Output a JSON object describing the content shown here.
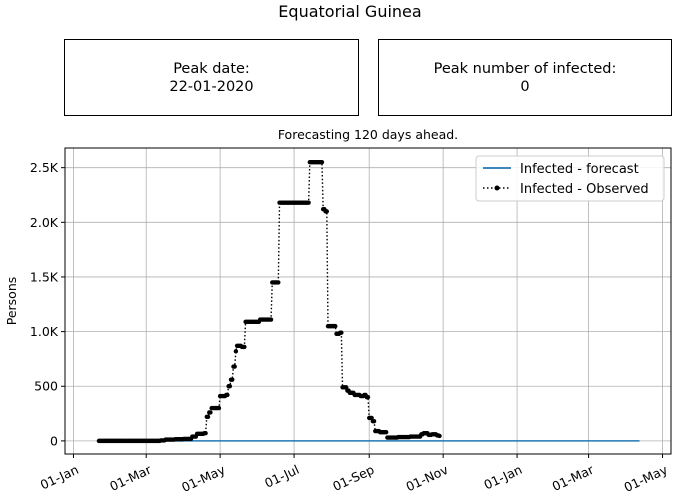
{
  "title": "Equatorial Guinea",
  "peak_date": {
    "label": "Peak date:",
    "value": "22-01-2020"
  },
  "peak_infected": {
    "label": "Peak number of infected:",
    "value": "0"
  },
  "chart_data": {
    "type": "line",
    "subtitle": "Forecasting 120 days ahead.",
    "ylabel": "Persons",
    "xlabel": "",
    "x_ticks": [
      "01-Jan",
      "01-Mar",
      "01-May",
      "01-Jul",
      "01-Sep",
      "01-Nov",
      "01-Jan",
      "01-Mar",
      "01-May"
    ],
    "y_ticks": [
      "0",
      "500",
      "1.0K",
      "1.5K",
      "2.0K",
      "2.5K"
    ],
    "ylim": [
      -120,
      2680
    ],
    "grid": true,
    "legend_position": "top-right",
    "series": [
      {
        "name": "Infected - forecast",
        "color": "#1f77b4",
        "style": "solid",
        "x": [
          "2020-01-22",
          "2021-04-12"
        ],
        "y": [
          0,
          0
        ]
      },
      {
        "name": "Infected - Observed",
        "color": "#000000",
        "style": "dotted-with-points",
        "points": [
          [
            "2020-01-22",
            0
          ],
          [
            "2020-02-27",
            0
          ],
          [
            "2020-03-13",
            4
          ],
          [
            "2020-03-17",
            12
          ],
          [
            "2020-03-25",
            15
          ],
          [
            "2020-04-01",
            18
          ],
          [
            "2020-04-08",
            40
          ],
          [
            "2020-04-12",
            65
          ],
          [
            "2020-04-18",
            70
          ],
          [
            "2020-04-20",
            220
          ],
          [
            "2020-04-22",
            260
          ],
          [
            "2020-04-24",
            300
          ],
          [
            "2020-04-29",
            300
          ],
          [
            "2020-05-01",
            410
          ],
          [
            "2020-05-06",
            420
          ],
          [
            "2020-05-08",
            500
          ],
          [
            "2020-05-10",
            560
          ],
          [
            "2020-05-12",
            680
          ],
          [
            "2020-05-14",
            820
          ],
          [
            "2020-05-15",
            870
          ],
          [
            "2020-05-19",
            860
          ],
          [
            "2020-05-22",
            1090
          ],
          [
            "2020-06-01",
            1090
          ],
          [
            "2020-06-03",
            1110
          ],
          [
            "2020-06-10",
            1110
          ],
          [
            "2020-06-13",
            1450
          ],
          [
            "2020-06-17",
            1450
          ],
          [
            "2020-06-19",
            2180
          ],
          [
            "2020-07-12",
            2180
          ],
          [
            "2020-07-14",
            2550
          ],
          [
            "2020-07-24",
            2550
          ],
          [
            "2020-07-25",
            2120
          ],
          [
            "2020-07-27",
            2100
          ],
          [
            "2020-07-29",
            1050
          ],
          [
            "2020-08-04",
            1050
          ],
          [
            "2020-08-05",
            980
          ],
          [
            "2020-08-08",
            990
          ],
          [
            "2020-08-10",
            490
          ],
          [
            "2020-08-14",
            460
          ],
          [
            "2020-08-16",
            440
          ],
          [
            "2020-08-20",
            420
          ],
          [
            "2020-08-25",
            410
          ],
          [
            "2020-08-28",
            420
          ],
          [
            "2020-08-30",
            400
          ],
          [
            "2020-09-01",
            210
          ],
          [
            "2020-09-04",
            180
          ],
          [
            "2020-09-06",
            90
          ],
          [
            "2020-09-10",
            80
          ],
          [
            "2020-09-14",
            80
          ],
          [
            "2020-09-16",
            30
          ],
          [
            "2020-09-21",
            30
          ],
          [
            "2020-09-25",
            35
          ],
          [
            "2020-10-01",
            35
          ],
          [
            "2020-10-05",
            40
          ],
          [
            "2020-10-10",
            40
          ],
          [
            "2020-10-14",
            60
          ],
          [
            "2020-10-16",
            70
          ],
          [
            "2020-10-20",
            55
          ],
          [
            "2020-10-23",
            60
          ],
          [
            "2020-10-27",
            50
          ],
          [
            "2020-10-29",
            45
          ]
        ]
      }
    ]
  }
}
